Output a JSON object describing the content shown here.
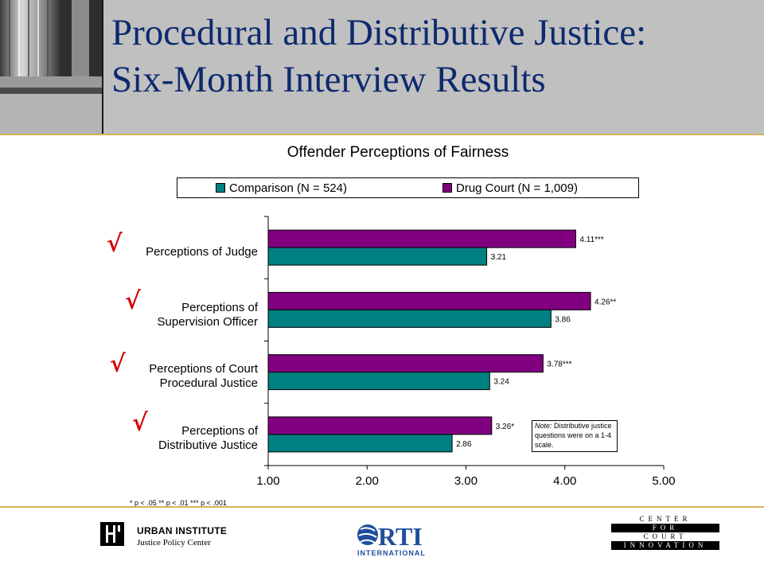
{
  "slide": {
    "title_line1": "Procedural and Distributive Justice:",
    "title_line2": "Six-Month Interview Results",
    "check_mark": "√",
    "footnote": "* p < .05   ** p < .01   *** p < .001",
    "note_label": "Note:",
    "note_text": " Distributive justice questions were on a 1-4 scale."
  },
  "colors": {
    "comparison": "#008080",
    "drug_court": "#800080",
    "title": "#0d2a6e",
    "check": "#d40000",
    "header_bg": "#c0c0c0",
    "rule": "#d4b35a"
  },
  "logos": {
    "urban_name": "URBAN INSTITUTE",
    "urban_sub": "Justice Policy Center",
    "rti_name": "RTI",
    "rti_sub": "INTERNATIONAL",
    "cci_lines": [
      "CENTER",
      "FOR",
      "COURT",
      "INNOVATION"
    ]
  },
  "chart_data": {
    "type": "bar",
    "orientation": "horizontal",
    "title": "Offender Perceptions of Fairness",
    "categories": [
      {
        "line1": "Perceptions of Judge",
        "line2": ""
      },
      {
        "line1": "Perceptions of",
        "line2": "Supervision Officer"
      },
      {
        "line1": "Perceptions of Court",
        "line2": "Procedural Justice"
      },
      {
        "line1": "Perceptions of",
        "line2": "Distributive Justice"
      }
    ],
    "series": [
      {
        "name": "Drug Court (N = 1,009)",
        "values": [
          4.11,
          4.26,
          3.78,
          3.26
        ],
        "labels": [
          "4.11***",
          "4.26**",
          "3.78***",
          "3.26*"
        ]
      },
      {
        "name": "Comparison (N = 524)",
        "values": [
          3.21,
          3.86,
          3.24,
          2.86
        ],
        "labels": [
          "3.21",
          "3.86",
          "3.24",
          "2.86"
        ]
      }
    ],
    "legend": [
      "Comparison (N = 524)",
      "Drug Court (N = 1,009)"
    ],
    "xlim": [
      1,
      5
    ],
    "x_ticks": [
      "1.00",
      "2.00",
      "3.00",
      "4.00",
      "5.00"
    ],
    "grid": false,
    "legend_position": "top"
  }
}
